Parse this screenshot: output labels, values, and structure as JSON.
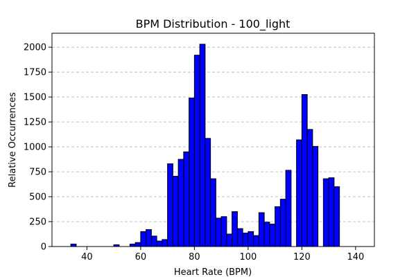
{
  "chart_data": {
    "type": "bar",
    "title": "BPM Distribution - 100_light",
    "xlabel": "Heart Rate (BPM)",
    "ylabel": "Relative Occurrences",
    "xlim": [
      27,
      147
    ],
    "ylim": [
      0,
      2140
    ],
    "xticks": [
      40,
      60,
      80,
      100,
      120,
      140
    ],
    "yticks": [
      0,
      250,
      500,
      750,
      1000,
      1250,
      1500,
      1750,
      2000
    ],
    "grid": "y-dashed",
    "bar_color": "#0000ff",
    "bar_edge_color": "#000000",
    "bin_width": 2,
    "bin_start": 32,
    "values": [
      0,
      25,
      0,
      0,
      0,
      0,
      0,
      0,
      0,
      18,
      0,
      0,
      25,
      40,
      150,
      170,
      105,
      55,
      70,
      830,
      705,
      875,
      950,
      1490,
      1920,
      2030,
      1085,
      680,
      285,
      300,
      125,
      350,
      180,
      135,
      150,
      110,
      340,
      245,
      225,
      400,
      475,
      765,
      0,
      1070,
      1525,
      1175,
      1005,
      0,
      680,
      690,
      600
    ]
  }
}
